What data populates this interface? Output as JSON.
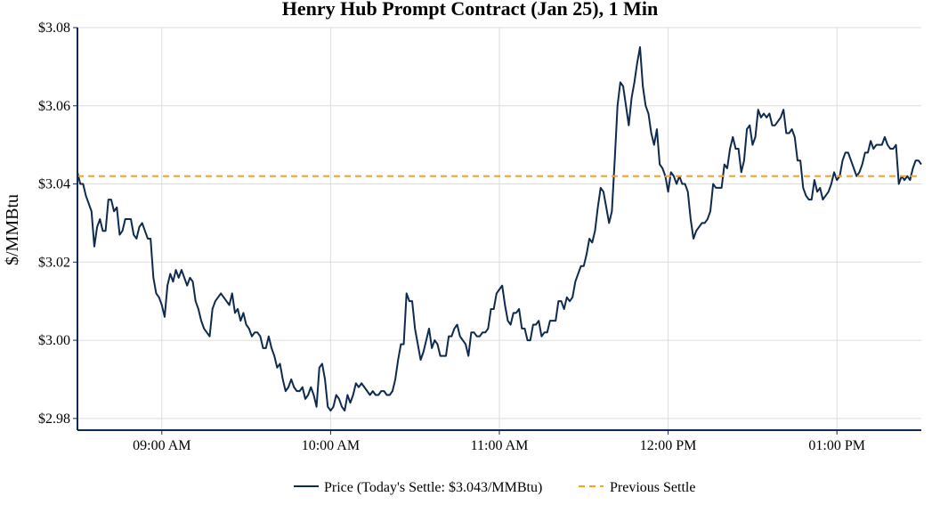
{
  "chart_data": {
    "type": "line",
    "title": "Henry Hub Prompt Contract (Jan 25), 1 Min",
    "xlabel": "",
    "ylabel": "$/MMBtu",
    "x_ticks": [
      {
        "minute": 540,
        "label": "09:00 AM"
      },
      {
        "minute": 600,
        "label": "10:00 AM"
      },
      {
        "minute": 660,
        "label": "11:00 AM"
      },
      {
        "minute": 720,
        "label": "12:00 PM"
      },
      {
        "minute": 780,
        "label": "01:00 PM"
      }
    ],
    "y_ticks": [
      {
        "value": 2.98,
        "label": "$2.98"
      },
      {
        "value": 3.0,
        "label": "$3.00"
      },
      {
        "value": 3.02,
        "label": "$3.02"
      },
      {
        "value": 3.04,
        "label": "$3.04"
      },
      {
        "value": 3.06,
        "label": "$3.06"
      },
      {
        "value": 3.08,
        "label": "$3.08"
      }
    ],
    "xlim": [
      510,
      810
    ],
    "ylim": [
      2.977,
      3.08
    ],
    "grid": true,
    "legend_position": "bottom",
    "series": [
      {
        "name": "Price (Today's Settle: $3.043/MMBtu)",
        "color": "#0d2a4f",
        "style": "solid",
        "points": [
          [
            510,
            3.043
          ],
          [
            511,
            3.04
          ],
          [
            512,
            3.04
          ],
          [
            513,
            3.037
          ],
          [
            514,
            3.035
          ],
          [
            515,
            3.033
          ],
          [
            516,
            3.024
          ],
          [
            517,
            3.029
          ],
          [
            518,
            3.031
          ],
          [
            519,
            3.028
          ],
          [
            520,
            3.028
          ],
          [
            521,
            3.036
          ],
          [
            522,
            3.036
          ],
          [
            523,
            3.033
          ],
          [
            524,
            3.034
          ],
          [
            525,
            3.027
          ],
          [
            526,
            3.028
          ],
          [
            527,
            3.031
          ],
          [
            528,
            3.031
          ],
          [
            529,
            3.031
          ],
          [
            530,
            3.027
          ],
          [
            531,
            3.026
          ],
          [
            532,
            3.029
          ],
          [
            533,
            3.03
          ],
          [
            534,
            3.028
          ],
          [
            535,
            3.026
          ],
          [
            536,
            3.026
          ],
          [
            537,
            3.016
          ],
          [
            538,
            3.012
          ],
          [
            539,
            3.011
          ],
          [
            540,
            3.009
          ],
          [
            541,
            3.006
          ],
          [
            542,
            3.014
          ],
          [
            543,
            3.017
          ],
          [
            544,
            3.015
          ],
          [
            545,
            3.018
          ],
          [
            546,
            3.016
          ],
          [
            547,
            3.018
          ],
          [
            548,
            3.016
          ],
          [
            549,
            3.014
          ],
          [
            550,
            3.016
          ],
          [
            551,
            3.015
          ],
          [
            552,
            3.01
          ],
          [
            553,
            3.008
          ],
          [
            554,
            3.005
          ],
          [
            555,
            3.003
          ],
          [
            556,
            3.002
          ],
          [
            557,
            3.001
          ],
          [
            558,
            3.008
          ],
          [
            559,
            3.01
          ],
          [
            560,
            3.011
          ],
          [
            561,
            3.012
          ],
          [
            562,
            3.011
          ],
          [
            563,
            3.01
          ],
          [
            564,
            3.009
          ],
          [
            565,
            3.012
          ],
          [
            566,
            3.007
          ],
          [
            567,
            3.008
          ],
          [
            568,
            3.005
          ],
          [
            569,
            3.007
          ],
          [
            570,
            3.004
          ],
          [
            571,
            3.003
          ],
          [
            572,
            3.001
          ],
          [
            573,
            3.002
          ],
          [
            574,
            3.002
          ],
          [
            575,
            3.001
          ],
          [
            576,
            2.998
          ],
          [
            577,
            2.998
          ],
          [
            578,
            3.001
          ],
          [
            579,
            2.998
          ],
          [
            580,
            2.996
          ],
          [
            581,
            2.993
          ],
          [
            582,
            2.994
          ],
          [
            583,
            2.99
          ],
          [
            584,
            2.987
          ],
          [
            585,
            2.988
          ],
          [
            586,
            2.99
          ],
          [
            587,
            2.988
          ],
          [
            588,
            2.987
          ],
          [
            589,
            2.987
          ],
          [
            590,
            2.988
          ],
          [
            591,
            2.985
          ],
          [
            592,
            2.986
          ],
          [
            593,
            2.988
          ],
          [
            594,
            2.986
          ],
          [
            595,
            2.983
          ],
          [
            596,
            2.993
          ],
          [
            597,
            2.994
          ],
          [
            598,
            2.99
          ],
          [
            599,
            2.983
          ],
          [
            600,
            2.982
          ],
          [
            601,
            2.983
          ],
          [
            602,
            2.986
          ],
          [
            603,
            2.985
          ],
          [
            604,
            2.983
          ],
          [
            605,
            2.982
          ],
          [
            606,
            2.986
          ],
          [
            607,
            2.984
          ],
          [
            608,
            2.986
          ],
          [
            609,
            2.989
          ],
          [
            610,
            2.988
          ],
          [
            611,
            2.989
          ],
          [
            612,
            2.988
          ],
          [
            613,
            2.987
          ],
          [
            614,
            2.986
          ],
          [
            615,
            2.987
          ],
          [
            616,
            2.986
          ],
          [
            617,
            2.986
          ],
          [
            618,
            2.987
          ],
          [
            619,
            2.987
          ],
          [
            620,
            2.986
          ],
          [
            621,
            2.986
          ],
          [
            622,
            2.987
          ],
          [
            623,
            2.99
          ],
          [
            624,
            2.995
          ],
          [
            625,
            2.999
          ],
          [
            626,
            2.999
          ],
          [
            627,
            3.012
          ],
          [
            628,
            3.01
          ],
          [
            629,
            3.01
          ],
          [
            630,
            3.003
          ],
          [
            631,
            2.999
          ],
          [
            632,
            2.995
          ],
          [
            633,
            2.997
          ],
          [
            634,
            3.0
          ],
          [
            635,
            3.003
          ],
          [
            636,
            2.998
          ],
          [
            637,
            3.0
          ],
          [
            638,
            2.999
          ],
          [
            639,
            2.996
          ],
          [
            640,
            2.996
          ],
          [
            641,
            2.996
          ],
          [
            642,
            3.001
          ],
          [
            643,
            3.001
          ],
          [
            644,
            3.003
          ],
          [
            645,
            3.004
          ],
          [
            646,
            3.001
          ],
          [
            647,
            3.0
          ],
          [
            648,
            2.999
          ],
          [
            649,
            2.996
          ],
          [
            650,
            3.002
          ],
          [
            651,
            3.002
          ],
          [
            652,
            3.001
          ],
          [
            653,
            3.001
          ],
          [
            654,
            3.002
          ],
          [
            655,
            3.002
          ],
          [
            656,
            3.003
          ],
          [
            657,
            3.008
          ],
          [
            658,
            3.008
          ],
          [
            659,
            3.012
          ],
          [
            660,
            3.013
          ],
          [
            661,
            3.014
          ],
          [
            662,
            3.009
          ],
          [
            663,
            3.005
          ],
          [
            664,
            3.004
          ],
          [
            665,
            3.007
          ],
          [
            666,
            3.007
          ],
          [
            667,
            3.008
          ],
          [
            668,
            3.003
          ],
          [
            669,
            3.003
          ],
          [
            670,
            3.0
          ],
          [
            671,
            3.0
          ],
          [
            672,
            3.004
          ],
          [
            673,
            3.004
          ],
          [
            674,
            3.005
          ],
          [
            675,
            3.001
          ],
          [
            676,
            3.002
          ],
          [
            677,
            3.002
          ],
          [
            678,
            3.005
          ],
          [
            679,
            3.005
          ],
          [
            680,
            3.005
          ],
          [
            681,
            3.01
          ],
          [
            682,
            3.01
          ],
          [
            683,
            3.008
          ],
          [
            684,
            3.011
          ],
          [
            685,
            3.01
          ],
          [
            686,
            3.011
          ],
          [
            687,
            3.015
          ],
          [
            688,
            3.017
          ],
          [
            689,
            3.019
          ],
          [
            690,
            3.019
          ],
          [
            691,
            3.022
          ],
          [
            692,
            3.026
          ],
          [
            693,
            3.025
          ],
          [
            694,
            3.028
          ],
          [
            695,
            3.034
          ],
          [
            696,
            3.039
          ],
          [
            697,
            3.038
          ],
          [
            698,
            3.034
          ],
          [
            699,
            3.03
          ],
          [
            700,
            3.033
          ],
          [
            701,
            3.046
          ],
          [
            702,
            3.06
          ],
          [
            703,
            3.066
          ],
          [
            704,
            3.065
          ],
          [
            705,
            3.06
          ],
          [
            706,
            3.055
          ],
          [
            707,
            3.062
          ],
          [
            708,
            3.066
          ],
          [
            709,
            3.071
          ],
          [
            710,
            3.075
          ],
          [
            711,
            3.065
          ],
          [
            712,
            3.06
          ],
          [
            713,
            3.058
          ],
          [
            714,
            3.053
          ],
          [
            715,
            3.05
          ],
          [
            716,
            3.054
          ],
          [
            717,
            3.045
          ],
          [
            718,
            3.044
          ],
          [
            719,
            3.042
          ],
          [
            720,
            3.038
          ],
          [
            721,
            3.043
          ],
          [
            722,
            3.042
          ],
          [
            723,
            3.04
          ],
          [
            724,
            3.042
          ],
          [
            725,
            3.04
          ],
          [
            726,
            3.04
          ],
          [
            727,
            3.038
          ],
          [
            728,
            3.031
          ],
          [
            729,
            3.026
          ],
          [
            730,
            3.028
          ],
          [
            731,
            3.029
          ],
          [
            732,
            3.03
          ],
          [
            733,
            3.03
          ],
          [
            734,
            3.031
          ],
          [
            735,
            3.033
          ],
          [
            736,
            3.04
          ],
          [
            737,
            3.039
          ],
          [
            738,
            3.039
          ],
          [
            739,
            3.039
          ],
          [
            740,
            3.045
          ],
          [
            741,
            3.044
          ],
          [
            742,
            3.049
          ],
          [
            743,
            3.052
          ],
          [
            744,
            3.049
          ],
          [
            745,
            3.049
          ],
          [
            746,
            3.043
          ],
          [
            747,
            3.046
          ],
          [
            748,
            3.054
          ],
          [
            749,
            3.055
          ],
          [
            750,
            3.05
          ],
          [
            751,
            3.052
          ],
          [
            752,
            3.059
          ],
          [
            753,
            3.057
          ],
          [
            754,
            3.058
          ],
          [
            755,
            3.057
          ],
          [
            756,
            3.058
          ],
          [
            757,
            3.055
          ],
          [
            758,
            3.055
          ],
          [
            759,
            3.056
          ],
          [
            760,
            3.057
          ],
          [
            761,
            3.059
          ],
          [
            762,
            3.053
          ],
          [
            763,
            3.053
          ],
          [
            764,
            3.054
          ],
          [
            765,
            3.052
          ],
          [
            766,
            3.046
          ],
          [
            767,
            3.046
          ],
          [
            768,
            3.039
          ],
          [
            769,
            3.037
          ],
          [
            770,
            3.036
          ],
          [
            771,
            3.036
          ],
          [
            772,
            3.041
          ],
          [
            773,
            3.038
          ],
          [
            774,
            3.039
          ],
          [
            775,
            3.036
          ],
          [
            776,
            3.037
          ],
          [
            777,
            3.038
          ],
          [
            778,
            3.04
          ],
          [
            779,
            3.043
          ],
          [
            780,
            3.041
          ],
          [
            781,
            3.042
          ],
          [
            782,
            3.046
          ],
          [
            783,
            3.048
          ],
          [
            784,
            3.048
          ],
          [
            785,
            3.046
          ],
          [
            786,
            3.044
          ],
          [
            787,
            3.042
          ],
          [
            788,
            3.043
          ],
          [
            789,
            3.045
          ],
          [
            790,
            3.048
          ],
          [
            791,
            3.048
          ],
          [
            792,
            3.051
          ],
          [
            793,
            3.049
          ],
          [
            794,
            3.05
          ],
          [
            795,
            3.05
          ],
          [
            796,
            3.05
          ],
          [
            797,
            3.052
          ],
          [
            798,
            3.05
          ],
          [
            799,
            3.049
          ],
          [
            800,
            3.049
          ],
          [
            801,
            3.05
          ],
          [
            802,
            3.04
          ],
          [
            803,
            3.042
          ],
          [
            804,
            3.041
          ],
          [
            805,
            3.042
          ],
          [
            806,
            3.041
          ],
          [
            807,
            3.044
          ],
          [
            808,
            3.046
          ],
          [
            809,
            3.046
          ],
          [
            810,
            3.045
          ]
        ]
      },
      {
        "name": "Previous Settle",
        "color": "#ff9f1a",
        "style": "dashed",
        "points": [
          [
            510,
            3.042
          ],
          [
            810,
            3.042
          ]
        ]
      }
    ]
  }
}
